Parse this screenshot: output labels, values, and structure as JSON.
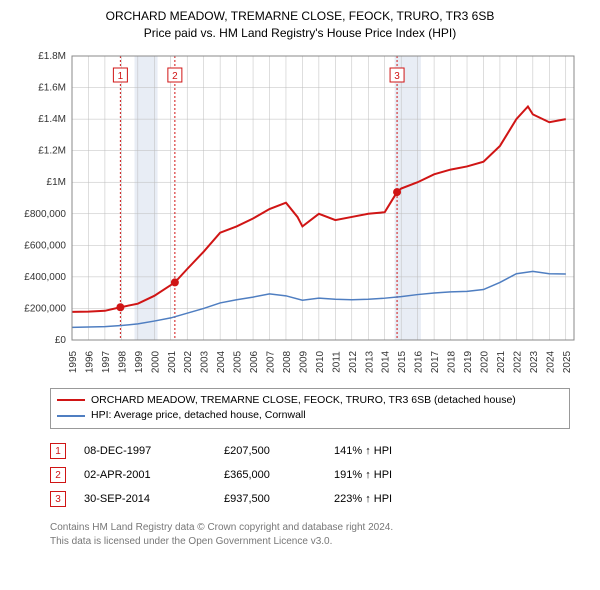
{
  "title_line1": "ORCHARD MEADOW, TREMARNE CLOSE, FEOCK, TRURO, TR3 6SB",
  "title_line2": "Price paid vs. HM Land Registry's House Price Index (HPI)",
  "chart": {
    "type": "line",
    "background_color": "#ffffff",
    "grid_color": "#bcbcbc",
    "x_years": [
      1995,
      1996,
      1997,
      1998,
      1999,
      2000,
      2001,
      2002,
      2003,
      2004,
      2005,
      2006,
      2007,
      2008,
      2009,
      2010,
      2011,
      2012,
      2013,
      2014,
      2015,
      2016,
      2017,
      2018,
      2019,
      2020,
      2021,
      2022,
      2023,
      2024,
      2025
    ],
    "xlim": [
      1995,
      2025.5
    ],
    "ylim": [
      0,
      1800000
    ],
    "ytick_step": 200000,
    "ytick_labels": [
      "£0",
      "£200,000",
      "£400,000",
      "£600,000",
      "£800,000",
      "£1M",
      "£1.2M",
      "£1.4M",
      "£1.6M",
      "£1.8M"
    ],
    "shaded_bands": [
      {
        "from": 1998.8,
        "to": 2000.2,
        "color": "#e8edf5"
      },
      {
        "from": 2014.6,
        "to": 2016.2,
        "color": "#e8edf5"
      }
    ],
    "vlines": [
      {
        "x": 1997.94,
        "label": "1",
        "color": "#d01515"
      },
      {
        "x": 2001.25,
        "label": "2",
        "color": "#d01515"
      },
      {
        "x": 2014.75,
        "label": "3",
        "color": "#d01515"
      }
    ],
    "series": [
      {
        "name": "subject",
        "color": "#d01515",
        "width": 2,
        "points": [
          [
            1995,
            178000
          ],
          [
            1996,
            180000
          ],
          [
            1997,
            185000
          ],
          [
            1997.94,
            207500
          ],
          [
            1999,
            230000
          ],
          [
            2000,
            280000
          ],
          [
            2001.25,
            365000
          ],
          [
            2002,
            450000
          ],
          [
            2003,
            560000
          ],
          [
            2004,
            680000
          ],
          [
            2005,
            720000
          ],
          [
            2006,
            770000
          ],
          [
            2007,
            830000
          ],
          [
            2008,
            870000
          ],
          [
            2008.7,
            780000
          ],
          [
            2009,
            720000
          ],
          [
            2010,
            800000
          ],
          [
            2011,
            760000
          ],
          [
            2012,
            780000
          ],
          [
            2013,
            800000
          ],
          [
            2014,
            810000
          ],
          [
            2014.75,
            937500
          ],
          [
            2015,
            960000
          ],
          [
            2016,
            1000000
          ],
          [
            2017,
            1050000
          ],
          [
            2018,
            1080000
          ],
          [
            2019,
            1100000
          ],
          [
            2020,
            1130000
          ],
          [
            2021,
            1230000
          ],
          [
            2022,
            1400000
          ],
          [
            2022.7,
            1480000
          ],
          [
            2023,
            1430000
          ],
          [
            2024,
            1380000
          ],
          [
            2025,
            1400000
          ]
        ],
        "sale_markers": [
          {
            "x": 1997.94,
            "y": 207500
          },
          {
            "x": 2001.25,
            "y": 365000
          },
          {
            "x": 2014.75,
            "y": 937500
          }
        ]
      },
      {
        "name": "hpi",
        "color": "#4f7ec1",
        "width": 1.5,
        "points": [
          [
            1995,
            80000
          ],
          [
            1996,
            82000
          ],
          [
            1997,
            85000
          ],
          [
            1998,
            92000
          ],
          [
            1999,
            102000
          ],
          [
            2000,
            120000
          ],
          [
            2001,
            140000
          ],
          [
            2002,
            170000
          ],
          [
            2003,
            200000
          ],
          [
            2004,
            235000
          ],
          [
            2005,
            255000
          ],
          [
            2006,
            272000
          ],
          [
            2007,
            292000
          ],
          [
            2008,
            280000
          ],
          [
            2009,
            252000
          ],
          [
            2010,
            265000
          ],
          [
            2011,
            258000
          ],
          [
            2012,
            255000
          ],
          [
            2013,
            258000
          ],
          [
            2014,
            265000
          ],
          [
            2015,
            275000
          ],
          [
            2016,
            288000
          ],
          [
            2017,
            298000
          ],
          [
            2018,
            305000
          ],
          [
            2019,
            308000
          ],
          [
            2020,
            320000
          ],
          [
            2021,
            365000
          ],
          [
            2022,
            420000
          ],
          [
            2023,
            435000
          ],
          [
            2024,
            420000
          ],
          [
            2025,
            418000
          ]
        ]
      }
    ]
  },
  "legend": {
    "subject_label": "ORCHARD MEADOW, TREMARNE CLOSE, FEOCK, TRURO, TR3 6SB (detached house)",
    "subject_color": "#d01515",
    "hpi_label": "HPI: Average price, detached house, Cornwall",
    "hpi_color": "#4f7ec1"
  },
  "sales": [
    {
      "n": "1",
      "date": "08-DEC-1997",
      "price": "£207,500",
      "hpi": "141% ↑ HPI",
      "color": "#d01515"
    },
    {
      "n": "2",
      "date": "02-APR-2001",
      "price": "£365,000",
      "hpi": "191% ↑ HPI",
      "color": "#d01515"
    },
    {
      "n": "3",
      "date": "30-SEP-2014",
      "price": "£937,500",
      "hpi": "223% ↑ HPI",
      "color": "#d01515"
    }
  ],
  "footer_line1": "Contains HM Land Registry data © Crown copyright and database right 2024.",
  "footer_line2": "This data is licensed under the Open Government Licence v3.0."
}
